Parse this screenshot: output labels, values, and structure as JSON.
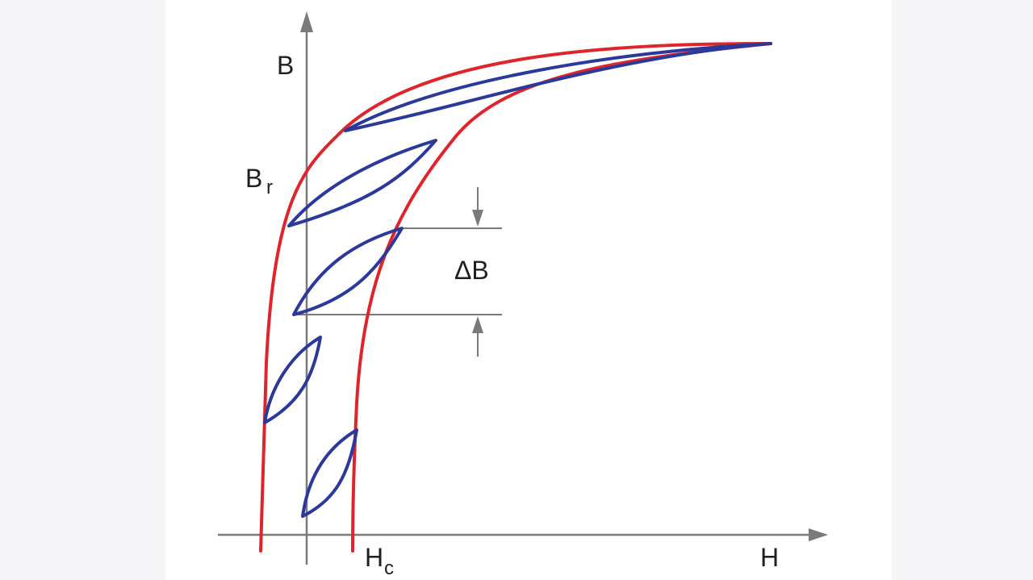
{
  "labels": {
    "b_axis": "B",
    "h_axis": "H",
    "remanence_main": "B",
    "remanence_sub": "r",
    "coercivity_main": "H",
    "coercivity_sub": "c",
    "delta_b": "ΔB"
  },
  "colors": {
    "background": "#f5f5f7",
    "panel": "#ffffff",
    "axes": "#7a7a7a",
    "major_loop": "#e0242b",
    "minor_loops": "#2b3a9a"
  }
}
